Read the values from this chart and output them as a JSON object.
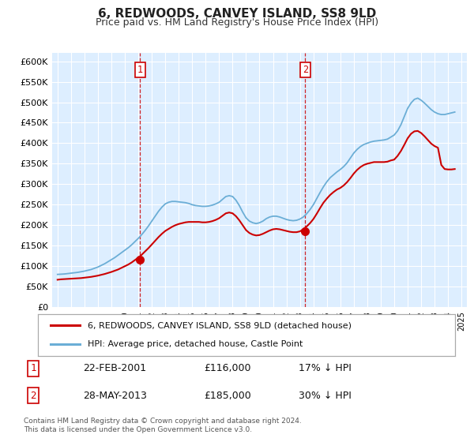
{
  "title": "6, REDWOODS, CANVEY ISLAND, SS8 9LD",
  "subtitle": "Price paid vs. HM Land Registry's House Price Index (HPI)",
  "title_fontsize": 11,
  "subtitle_fontsize": 9,
  "background_color": "#ffffff",
  "plot_bg_color": "#ddeeff",
  "grid_color": "#ffffff",
  "ylim": [
    0,
    620000
  ],
  "yticks": [
    0,
    50000,
    100000,
    150000,
    200000,
    250000,
    300000,
    350000,
    400000,
    450000,
    500000,
    550000,
    600000
  ],
  "ytick_labels": [
    "£0",
    "£50K",
    "£100K",
    "£150K",
    "£200K",
    "£250K",
    "£300K",
    "£350K",
    "£400K",
    "£450K",
    "£500K",
    "£550K",
    "£600K"
  ],
  "hpi_color": "#6baed6",
  "price_color": "#cc0000",
  "vline_color": "#cc0000",
  "sale1_year": 2001.13,
  "sale1_price": 116000,
  "sale2_year": 2013.4,
  "sale2_price": 185000,
  "legend_label_price": "6, REDWOODS, CANVEY ISLAND, SS8 9LD (detached house)",
  "legend_label_hpi": "HPI: Average price, detached house, Castle Point",
  "table_data": [
    [
      "1",
      "22-FEB-2001",
      "£116,000",
      "17% ↓ HPI"
    ],
    [
      "2",
      "28-MAY-2013",
      "£185,000",
      "30% ↓ HPI"
    ]
  ],
  "footer_text": "Contains HM Land Registry data © Crown copyright and database right 2024.\nThis data is licensed under the Open Government Licence v3.0.",
  "hpi_data_x": [
    1995.0,
    1995.25,
    1995.5,
    1995.75,
    1996.0,
    1996.25,
    1996.5,
    1996.75,
    1997.0,
    1997.25,
    1997.5,
    1997.75,
    1998.0,
    1998.25,
    1998.5,
    1998.75,
    1999.0,
    1999.25,
    1999.5,
    1999.75,
    2000.0,
    2000.25,
    2000.5,
    2000.75,
    2001.0,
    2001.25,
    2001.5,
    2001.75,
    2002.0,
    2002.25,
    2002.5,
    2002.75,
    2003.0,
    2003.25,
    2003.5,
    2003.75,
    2004.0,
    2004.25,
    2004.5,
    2004.75,
    2005.0,
    2005.25,
    2005.5,
    2005.75,
    2006.0,
    2006.25,
    2006.5,
    2006.75,
    2007.0,
    2007.25,
    2007.5,
    2007.75,
    2008.0,
    2008.25,
    2008.5,
    2008.75,
    2009.0,
    2009.25,
    2009.5,
    2009.75,
    2010.0,
    2010.25,
    2010.5,
    2010.75,
    2011.0,
    2011.25,
    2011.5,
    2011.75,
    2012.0,
    2012.25,
    2012.5,
    2012.75,
    2013.0,
    2013.25,
    2013.5,
    2013.75,
    2014.0,
    2014.25,
    2014.5,
    2014.75,
    2015.0,
    2015.25,
    2015.5,
    2015.75,
    2016.0,
    2016.25,
    2016.5,
    2016.75,
    2017.0,
    2017.25,
    2017.5,
    2017.75,
    2018.0,
    2018.25,
    2018.5,
    2018.75,
    2019.0,
    2019.25,
    2019.5,
    2019.75,
    2020.0,
    2020.25,
    2020.5,
    2020.75,
    2021.0,
    2021.25,
    2021.5,
    2021.75,
    2022.0,
    2022.25,
    2022.5,
    2022.75,
    2023.0,
    2023.25,
    2023.5,
    2023.75,
    2024.0,
    2024.25,
    2024.5
  ],
  "hpi_data_y": [
    80000,
    80500,
    81000,
    82000,
    83000,
    84000,
    85000,
    86500,
    88000,
    90000,
    92000,
    95000,
    98000,
    102000,
    106000,
    111000,
    116000,
    121000,
    127000,
    133000,
    139000,
    145000,
    152000,
    160000,
    168000,
    177000,
    187000,
    198000,
    210000,
    222000,
    234000,
    244000,
    252000,
    256000,
    258000,
    258000,
    257000,
    256000,
    255000,
    253000,
    250000,
    248000,
    247000,
    246000,
    246000,
    247000,
    249000,
    252000,
    256000,
    263000,
    270000,
    272000,
    270000,
    261000,
    248000,
    232000,
    218000,
    210000,
    206000,
    204000,
    206000,
    210000,
    216000,
    220000,
    222000,
    222000,
    220000,
    217000,
    214000,
    212000,
    211000,
    212000,
    215000,
    220000,
    228000,
    238000,
    250000,
    265000,
    280000,
    294000,
    306000,
    316000,
    323000,
    330000,
    336000,
    343000,
    352000,
    364000,
    376000,
    385000,
    392000,
    397000,
    400000,
    403000,
    405000,
    406000,
    407000,
    408000,
    410000,
    415000,
    420000,
    430000,
    445000,
    465000,
    485000,
    498000,
    507000,
    510000,
    505000,
    498000,
    490000,
    482000,
    476000,
    472000,
    470000,
    470000,
    472000,
    474000,
    476000
  ],
  "price_data_x": [
    1995.0,
    1995.25,
    1995.5,
    1995.75,
    1996.0,
    1996.25,
    1996.5,
    1996.75,
    1997.0,
    1997.25,
    1997.5,
    1997.75,
    1998.0,
    1998.25,
    1998.5,
    1998.75,
    1999.0,
    1999.25,
    1999.5,
    1999.75,
    2000.0,
    2000.25,
    2000.5,
    2000.75,
    2001.0,
    2001.25,
    2001.5,
    2001.75,
    2002.0,
    2002.25,
    2002.5,
    2002.75,
    2003.0,
    2003.25,
    2003.5,
    2003.75,
    2004.0,
    2004.25,
    2004.5,
    2004.75,
    2005.0,
    2005.25,
    2005.5,
    2005.75,
    2006.0,
    2006.25,
    2006.5,
    2006.75,
    2007.0,
    2007.25,
    2007.5,
    2007.75,
    2008.0,
    2008.25,
    2008.5,
    2008.75,
    2009.0,
    2009.25,
    2009.5,
    2009.75,
    2010.0,
    2010.25,
    2010.5,
    2010.75,
    2011.0,
    2011.25,
    2011.5,
    2011.75,
    2012.0,
    2012.25,
    2012.5,
    2012.75,
    2013.0,
    2013.25,
    2013.5,
    2013.75,
    2014.0,
    2014.25,
    2014.5,
    2014.75,
    2015.0,
    2015.25,
    2015.5,
    2015.75,
    2016.0,
    2016.25,
    2016.5,
    2016.75,
    2017.0,
    2017.25,
    2017.5,
    2017.75,
    2018.0,
    2018.25,
    2018.5,
    2018.75,
    2019.0,
    2019.25,
    2019.5,
    2019.75,
    2020.0,
    2020.25,
    2020.5,
    2020.75,
    2021.0,
    2021.25,
    2021.5,
    2021.75,
    2022.0,
    2022.25,
    2022.5,
    2022.75,
    2023.0,
    2023.25,
    2023.5,
    2023.75,
    2024.0,
    2024.25,
    2024.5
  ],
  "price_data_y": [
    67000,
    68000,
    68500,
    69000,
    69500,
    70000,
    70500,
    71000,
    72000,
    73000,
    74000,
    75500,
    77000,
    79000,
    81000,
    83500,
    86000,
    89000,
    92000,
    96000,
    100000,
    104000,
    109000,
    115000,
    121000,
    128000,
    136000,
    144000,
    153000,
    162000,
    171000,
    179000,
    186000,
    191000,
    196000,
    200000,
    203000,
    205000,
    207000,
    208000,
    208000,
    208000,
    208000,
    207000,
    207000,
    208000,
    210000,
    213000,
    217000,
    223000,
    229000,
    231000,
    229000,
    222000,
    212000,
    200000,
    188000,
    181000,
    177000,
    175000,
    176000,
    179000,
    183000,
    187000,
    190000,
    191000,
    190000,
    188000,
    186000,
    184000,
    183000,
    183000,
    185000,
    190000,
    197000,
    205000,
    215000,
    228000,
    242000,
    255000,
    265000,
    274000,
    281000,
    287000,
    291000,
    297000,
    305000,
    315000,
    326000,
    335000,
    342000,
    347000,
    350000,
    352000,
    354000,
    354000,
    354000,
    354000,
    355000,
    358000,
    360000,
    369000,
    381000,
    396000,
    412000,
    423000,
    429000,
    430000,
    425000,
    417000,
    408000,
    399000,
    393000,
    389000,
    347000,
    337000,
    336000,
    336000,
    337000
  ]
}
